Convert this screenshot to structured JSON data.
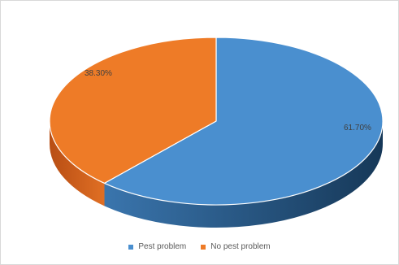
{
  "chart_data": {
    "type": "pie",
    "title": "",
    "slices": [
      {
        "label": "Pest problem",
        "value": 61.7,
        "display": "61.70%",
        "color": "#4a8fcf",
        "side_color": "#2a5f8a"
      },
      {
        "label": "No pest problem",
        "value": 38.3,
        "display": "38.30%",
        "color": "#ee7b27",
        "side_color": "#c0561a"
      }
    ],
    "style": "3d-pie",
    "legend_position": "bottom"
  }
}
